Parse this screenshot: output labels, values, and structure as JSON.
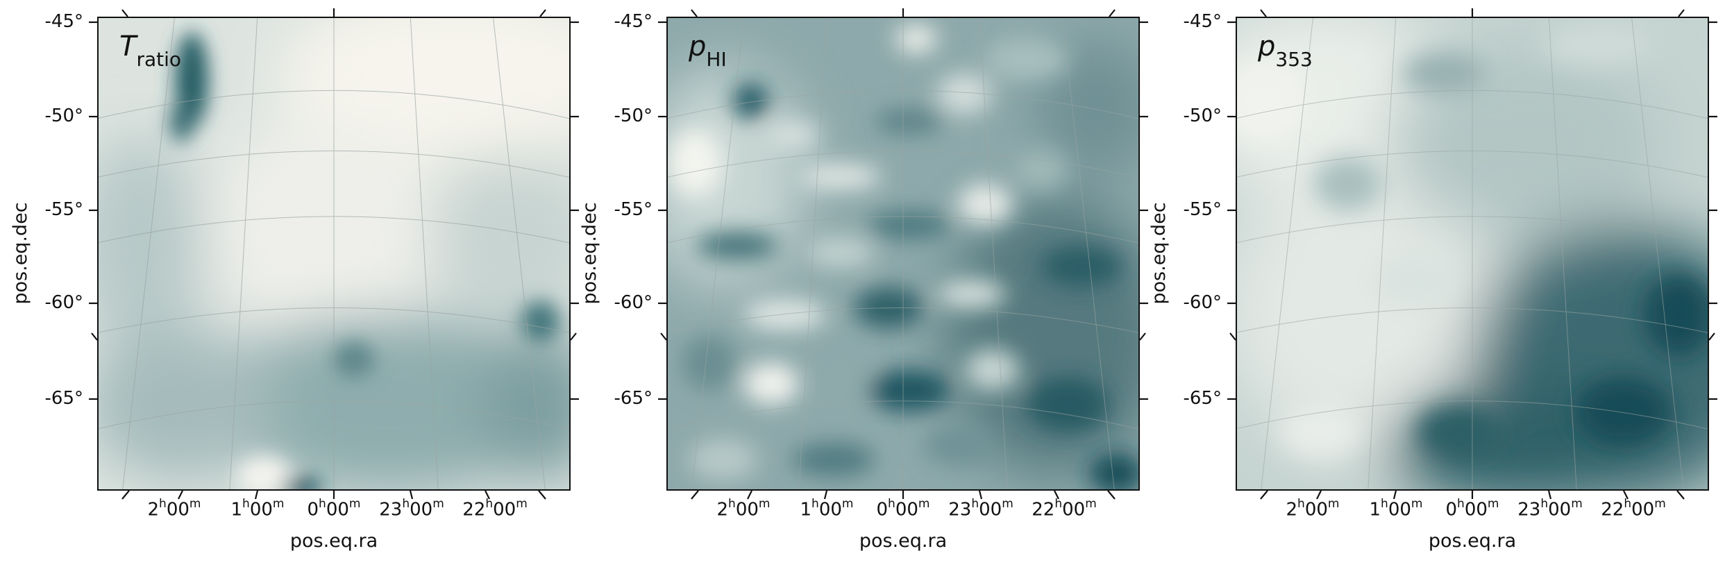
{
  "colormap": {
    "low": "#f6f4ee",
    "high": "#0e4a55"
  },
  "chart_data": [
    {
      "type": "heatmap",
      "panel_label": {
        "main": "T",
        "sub": "ratio"
      },
      "xlabel": "pos.eq.ra",
      "ylabel": "pos.eq.dec",
      "dec_ticks": [
        "-45°",
        "-50°",
        "-55°",
        "-60°",
        "-65°"
      ],
      "ra_ticks": [
        {
          "h": "2",
          "m": "00"
        },
        {
          "h": "1",
          "m": "00"
        },
        {
          "h": "0",
          "m": "00"
        },
        {
          "h": "23",
          "m": "00"
        },
        {
          "h": "22",
          "m": "00"
        }
      ],
      "grid": true,
      "pattern": "smooth"
    },
    {
      "type": "heatmap",
      "panel_label": {
        "main": "p",
        "sub": "HI"
      },
      "xlabel": "pos.eq.ra",
      "ylabel": "pos.eq.dec",
      "dec_ticks": [
        "-45°",
        "-50°",
        "-55°",
        "-60°",
        "-65°"
      ],
      "ra_ticks": [
        {
          "h": "2",
          "m": "00"
        },
        {
          "h": "1",
          "m": "00"
        },
        {
          "h": "0",
          "m": "00"
        },
        {
          "h": "23",
          "m": "00"
        },
        {
          "h": "22",
          "m": "00"
        }
      ],
      "grid": true,
      "pattern": "filamentary"
    },
    {
      "type": "heatmap",
      "panel_label": {
        "main": "p",
        "sub": "353"
      },
      "xlabel": "pos.eq.ra",
      "ylabel": "pos.eq.dec",
      "dec_ticks": [
        "-45°",
        "-50°",
        "-55°",
        "-60°",
        "-65°"
      ],
      "ra_ticks": [
        {
          "h": "2",
          "m": "00"
        },
        {
          "h": "1",
          "m": "00"
        },
        {
          "h": "0",
          "m": "00"
        },
        {
          "h": "23",
          "m": "00"
        },
        {
          "h": "22",
          "m": "00"
        }
      ],
      "grid": true,
      "pattern": "gradient"
    }
  ]
}
